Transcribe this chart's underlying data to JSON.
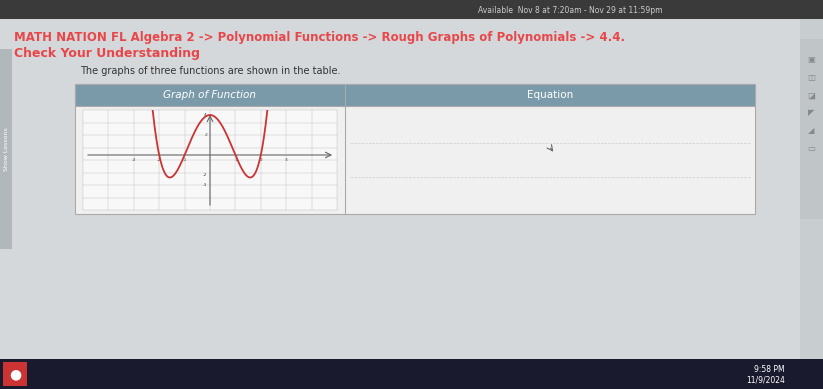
{
  "bg_color": "#c8cdd0",
  "page_bg": "#d4d8db",
  "top_bar_color": "#3a3a3a",
  "top_bar_text": "Available  Nov 8 at 7:20am - Nov 29 at 11:59pm",
  "top_bar_text_color": "#cccccc",
  "title_line1": "MATH NATION FL Algebra 2 -> Polynomial Functions -> Rough Graphs of Polynomials -> 4.4.",
  "title_line2": "Check Your Understanding",
  "title_color": "#e8474a",
  "description": "The graphs of three functions are shown in the table.",
  "description_color": "#333333",
  "table_header_bg": "#7a9aaa",
  "table_header_text_color": "#ffffff",
  "table_body_bg": "#f0f0f0",
  "table_border_color": "#aaaaaa",
  "col1_header": "Graph of Function",
  "col2_header": "Equation",
  "graph_line_color": "#cc3333",
  "axis_color": "#666666",
  "grid_color": "#bbbbbb",
  "sidebar_bg": "#b0b8bc",
  "sidebar_text": "Show Lessons",
  "right_sidebar_bg": "#c0c5c8",
  "taskbar_bg": "#1a1a2e",
  "taskbar_time": "9:58 PM",
  "taskbar_date": "11/9/2024",
  "taskbar_text_color": "#ffffff"
}
